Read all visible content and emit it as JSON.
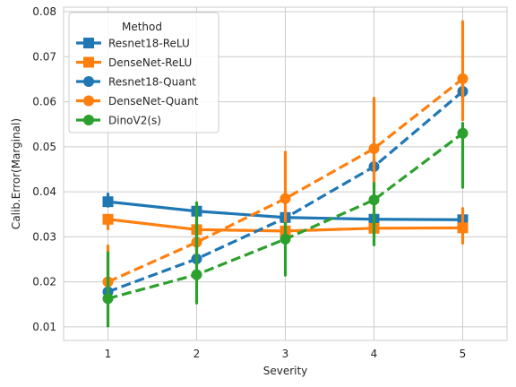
{
  "chart_data": {
    "type": "line",
    "x": [
      1,
      2,
      3,
      4,
      5
    ],
    "xlabel": "Severity",
    "ylabel": "Calib.Error(Marginal)",
    "ylim": [
      0.007,
      0.081
    ],
    "yticks": [
      0.01,
      0.02,
      0.03,
      0.04,
      0.05,
      0.06,
      0.07,
      0.08
    ],
    "ytick_labels": [
      "0.01",
      "0.02",
      "0.03",
      "0.04",
      "0.05",
      "0.06",
      "0.07",
      "0.08"
    ],
    "xtick_labels": [
      "1",
      "2",
      "3",
      "4",
      "5"
    ],
    "grid": true,
    "legend": {
      "title": "Method",
      "placement": "top-left"
    },
    "series": [
      {
        "name": "Resnet18-ReLU",
        "color": "#1f77b4",
        "dash": "solid",
        "marker": "square",
        "values": [
          0.0378,
          0.0357,
          0.0343,
          0.0339,
          0.0338
        ],
        "err_low": [
          0.0368,
          0.035,
          0.0336,
          0.0333,
          0.0333
        ],
        "err_high": [
          0.0395,
          0.0365,
          0.035,
          0.0345,
          0.0344
        ]
      },
      {
        "name": "DenseNet-ReLU",
        "color": "#ff7f0e",
        "dash": "solid",
        "marker": "square",
        "values": [
          0.0339,
          0.0316,
          0.0313,
          0.0319,
          0.032
        ],
        "err_low": [
          0.0318,
          0.0305,
          0.0303,
          0.0308,
          0.0286
        ],
        "err_high": [
          0.0347,
          0.0322,
          0.0321,
          0.0327,
          0.0363
        ]
      },
      {
        "name": "Resnet18-Quant",
        "color": "#1f77b4",
        "dash": "dashed",
        "marker": "circle",
        "values": [
          0.0178,
          0.0251,
          0.0342,
          0.0456,
          0.0623
        ],
        "err_low": [
          0.0168,
          0.0238,
          0.0328,
          0.044,
          0.06
        ],
        "err_high": [
          0.0188,
          0.0262,
          0.0356,
          0.0472,
          0.0646
        ]
      },
      {
        "name": "DenseNet-Quant",
        "color": "#ff7f0e",
        "dash": "dashed",
        "marker": "circle",
        "values": [
          0.02,
          0.0288,
          0.0385,
          0.0496,
          0.0651
        ],
        "err_low": [
          0.0168,
          0.025,
          0.031,
          0.041,
          0.056
        ],
        "err_high": [
          0.028,
          0.034,
          0.0488,
          0.0608,
          0.0778
        ]
      },
      {
        "name": "DinoV2(s)",
        "color": "#2ca02c",
        "dash": "dashed",
        "marker": "circle",
        "values": [
          0.0163,
          0.0216,
          0.0295,
          0.0382,
          0.053
        ],
        "err_low": [
          0.0102,
          0.0153,
          0.0215,
          0.0282,
          0.041
        ],
        "err_high": [
          0.0265,
          0.0376,
          0.033,
          0.0419,
          0.0552
        ]
      }
    ]
  }
}
